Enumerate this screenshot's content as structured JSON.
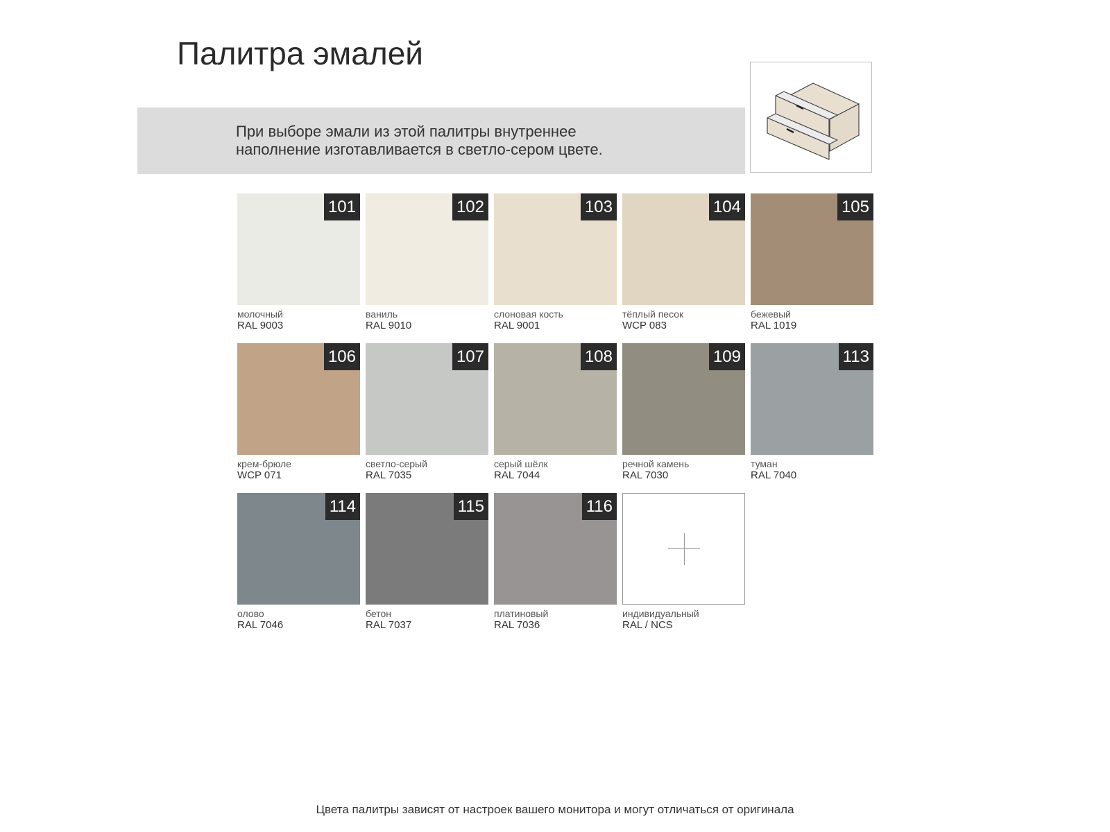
{
  "title": "Палитра эмалей",
  "notice": {
    "line1": "При выборе эмали из этой палитры внутреннее",
    "line2": "наполнение изготавливается в светло-сером цвете."
  },
  "preview_icon": "drawer-cabinet-illustration",
  "swatches": [
    {
      "num": "101",
      "name": "молочный",
      "code": "RAL 9003",
      "color": "#ebebe6"
    },
    {
      "num": "102",
      "name": "ваниль",
      "code": "RAL 9010",
      "color": "#f0ece2"
    },
    {
      "num": "103",
      "name": "слоновая кость",
      "code": "RAL 9001",
      "color": "#e8dfcf"
    },
    {
      "num": "104",
      "name": "тёплый песок",
      "code": "WCP 083",
      "color": "#e1d6c2"
    },
    {
      "num": "105",
      "name": "бежевый",
      "code": "RAL 1019",
      "color": "#a48d77"
    },
    {
      "num": "106",
      "name": "крем-брюле",
      "code": "WCP 071",
      "color": "#c1a388"
    },
    {
      "num": "107",
      "name": "светло-серый",
      "code": "RAL 7035",
      "color": "#c6c8c5"
    },
    {
      "num": "108",
      "name": "серый шёлк",
      "code": "RAL 7044",
      "color": "#b6b3a6"
    },
    {
      "num": "109",
      "name": "речной камень",
      "code": "RAL 7030",
      "color": "#918e81"
    },
    {
      "num": "113",
      "name": "туман",
      "code": "RAL 7040",
      "color": "#9ba0a2"
    },
    {
      "num": "114",
      "name": "олово",
      "code": "RAL 7046",
      "color": "#7e878b"
    },
    {
      "num": "115",
      "name": "бетон",
      "code": "RAL 7037",
      "color": "#7b7b7b"
    },
    {
      "num": "116",
      "name": "платиновый",
      "code": "RAL 7036",
      "color": "#979493"
    }
  ],
  "custom": {
    "name": "индивидуальный",
    "code": "RAL / NCS",
    "icon": "plus-icon"
  },
  "footer": "Цвета палитры зависят от настроек вашего монитора и могут отличаться от оригинала"
}
